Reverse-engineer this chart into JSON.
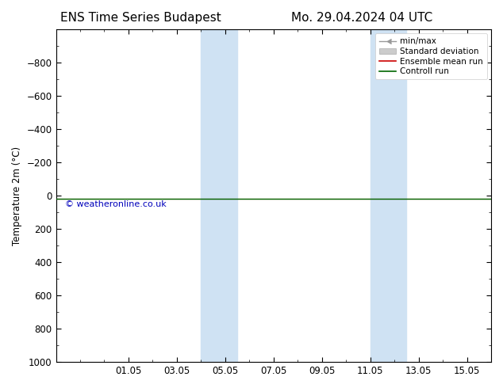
{
  "title_left": "ENS Time Series Budapest",
  "title_right": "Mo. 29.04.2024 04 UTC",
  "ylabel": "Temperature 2m (°C)",
  "ylim_bottom": 1000,
  "ylim_top": -1000,
  "yticks": [
    -800,
    -600,
    -400,
    -200,
    0,
    200,
    400,
    600,
    800,
    1000
  ],
  "xtick_labels": [
    "01.05",
    "03.05",
    "05.05",
    "07.05",
    "09.05",
    "11.05",
    "13.05",
    "15.05"
  ],
  "xtick_positions": [
    3,
    5,
    7,
    9,
    11,
    13,
    15,
    17
  ],
  "x_min": 0,
  "x_max": 18,
  "shaded_bands": [
    {
      "x_start": 6.0,
      "x_end": 7.5
    },
    {
      "x_start": 13.0,
      "x_end": 14.5
    }
  ],
  "band_color": "#cfe2f3",
  "green_line_y": 20,
  "red_line_y": 20,
  "green_line_color": "#006600",
  "red_line_color": "#cc0000",
  "watermark": "© weatheronline.co.uk",
  "watermark_color": "#0000bb",
  "background_color": "#ffffff",
  "plot_bg_color": "#ffffff",
  "legend_labels": [
    "min/max",
    "Standard deviation",
    "Ensemble mean run",
    "Controll run"
  ],
  "title_fontsize": 11,
  "tick_fontsize": 8.5,
  "label_fontsize": 8.5
}
